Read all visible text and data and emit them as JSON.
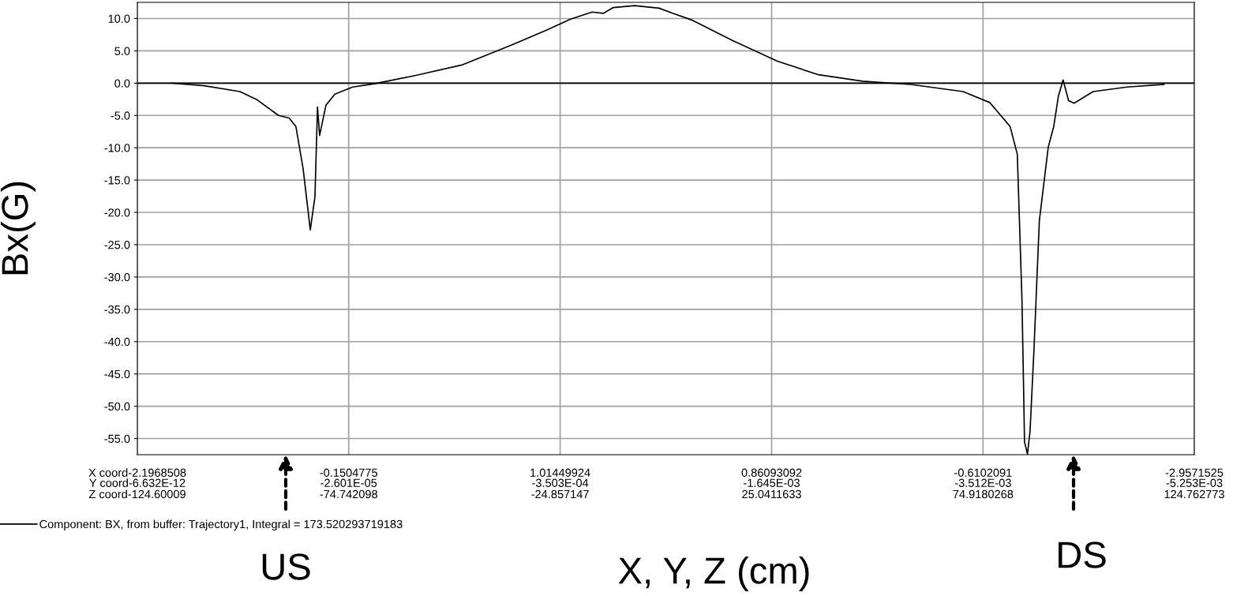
{
  "chart_data": {
    "type": "line",
    "xlabel": "X, Y, Z (cm)",
    "ylabel": "Bx(G)",
    "series": [
      {
        "name": "Component: BX, from buffer: Trajectory1, Integral = 173.520293719183",
        "color": "#000000",
        "x": [
          -116.6,
          -108.8,
          -100.4,
          -96.3,
          -91.3,
          -88.8,
          -87.2,
          -85.5,
          -83.8,
          -82.7,
          -82.3,
          -82.1,
          -81.6,
          -80.1,
          -78.0,
          -73.8,
          -68.7,
          -58.9,
          -48.1,
          -36.3,
          -28.1,
          -22.4,
          -17.3,
          -14.7,
          -12.3,
          -7.3,
          -1.5,
          1.8,
          6.1,
          15.8,
          26.4,
          36.1,
          46.5,
          57.9,
          70.2,
          76.5,
          81.3,
          83.0,
          84.1,
          84.5,
          84.7,
          85.4,
          86.0,
          86.9,
          88.2,
          90.3,
          91.6,
          92.7,
          93.8,
          95.1,
          96.4,
          100.9,
          108.9,
          117.6
        ],
        "values": [
          0.0,
          -0.4,
          -1.3,
          -2.6,
          -5.0,
          -5.4,
          -6.7,
          -13.2,
          -22.7,
          -17.6,
          -8.3,
          -3.7,
          -8.1,
          -3.4,
          -1.7,
          -0.6,
          -0.1,
          1.2,
          2.8,
          5.9,
          8.2,
          9.9,
          11.0,
          10.8,
          11.7,
          12.0,
          11.6,
          10.8,
          9.8,
          6.6,
          3.4,
          1.3,
          0.3,
          -0.2,
          -1.3,
          -3.0,
          -6.7,
          -11.0,
          -33.5,
          -47.8,
          -55.5,
          -57.4,
          -53.9,
          -41.7,
          -21.3,
          -9.9,
          -6.7,
          -2.0,
          0.5,
          -2.7,
          -3.1,
          -1.3,
          -0.6,
          -0.2
        ]
      }
    ],
    "xlim": [
      -124.60009,
      124.762773
    ],
    "xticks": [
      {
        "value": -124.60009,
        "label": "Z coord-124.60009"
      },
      -74.742098,
      -24.857147,
      25.0411633,
      74.9180268,
      124.762773
    ],
    "ylim": [
      -57.5,
      12.5
    ],
    "yticks": [
      {
        "value": 10,
        "label": "10.0"
      },
      {
        "value": 5,
        "label": "5.0"
      },
      {
        "value": 0,
        "label": "0.0"
      },
      {
        "value": -5,
        "label": "-5.0"
      },
      {
        "value": -10,
        "label": "-10.0"
      },
      {
        "value": -15,
        "label": "-15.0"
      },
      {
        "value": -20,
        "label": "-20.0"
      },
      {
        "value": -25,
        "label": "-25.0"
      },
      {
        "value": -30,
        "label": "-30.0"
      },
      {
        "value": -35,
        "label": "-35.0"
      },
      {
        "value": -40,
        "label": "-40.0"
      },
      {
        "value": -45,
        "label": "-45.0"
      },
      {
        "value": -50,
        "label": "-50.0"
      },
      {
        "value": -55,
        "label": "-55.0"
      }
    ],
    "grid": true,
    "ref_lines": [
      {
        "axis": "y",
        "value": 0,
        "label": null,
        "color": "#000000"
      }
    ],
    "annotations": [
      "US",
      "DS",
      "X coord-2.1968508",
      "Y coord-6.632E-12",
      "-0.1504775",
      "-2.601E-05",
      "1.01449924",
      "-3.503E-04",
      "0.86093092",
      "-1.645E-03",
      "-0.6102091",
      "-3.512E-03",
      "-2.9571525",
      "-5.253E-03"
    ],
    "legend": "bottom",
    "marker": "none",
    "line_style": "solid"
  }
}
